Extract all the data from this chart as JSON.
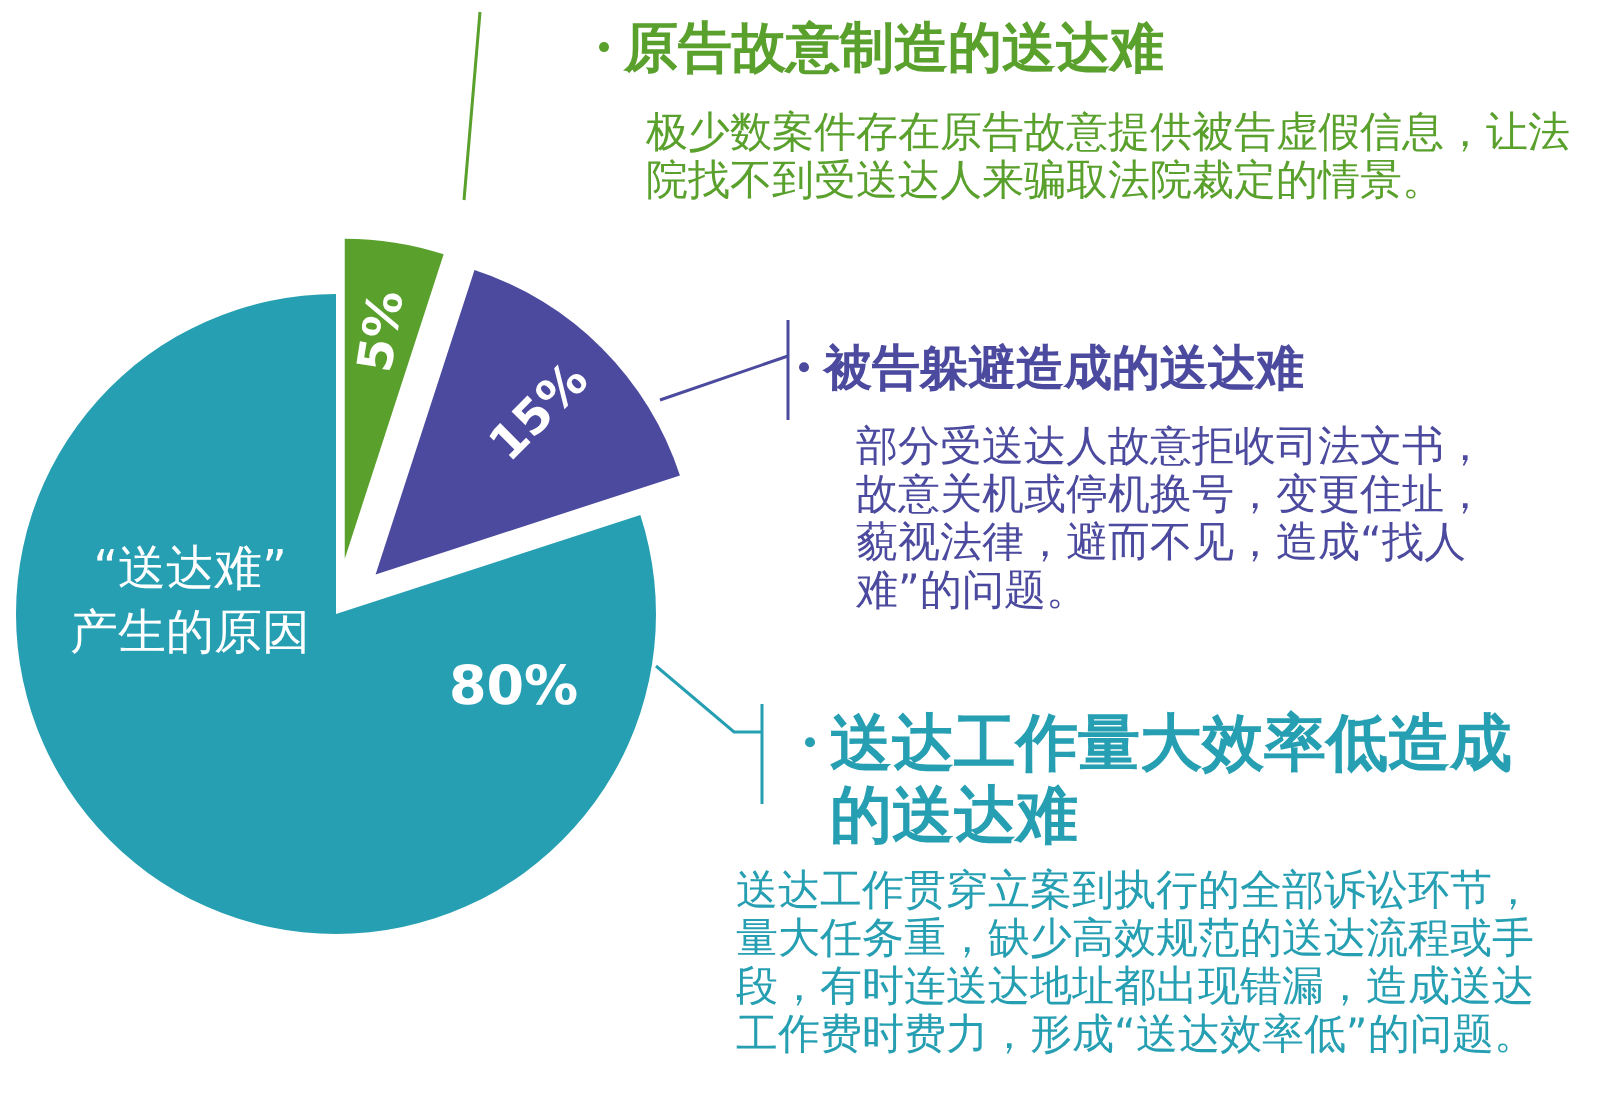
{
  "chart_data": {
    "type": "pie",
    "title": "“送达难”\n产生的原因",
    "categories": [
      "原告故意制造的送达难",
      "被告躲避造成的送达难",
      "送达工作量大效率低造成的送达难"
    ],
    "values": [
      5,
      15,
      80
    ],
    "colors": [
      "#5aa02c",
      "#4b4a9e",
      "#269fb2"
    ],
    "value_labels": [
      "5%",
      "15%",
      "80%"
    ],
    "legend": "right",
    "annotations": [
      "极少数案件存在原告故意提供被告虚假信息，让法院找不到受送达人来骗取法院裁定的情景。",
      "部分受送达人故意拒收司法文书，故意关机或停机换号，变更住址，藐视法律，避而不见，造成“找人难”的问题。",
      "送达工作贯穿立案到执行的全部诉讼环节，量大任务重，缺少高效规范的送达流程或手段，有时连送达地址都出现错漏，造成送达工作费时费力，形成“送达效率低”的问题。"
    ]
  }
}
